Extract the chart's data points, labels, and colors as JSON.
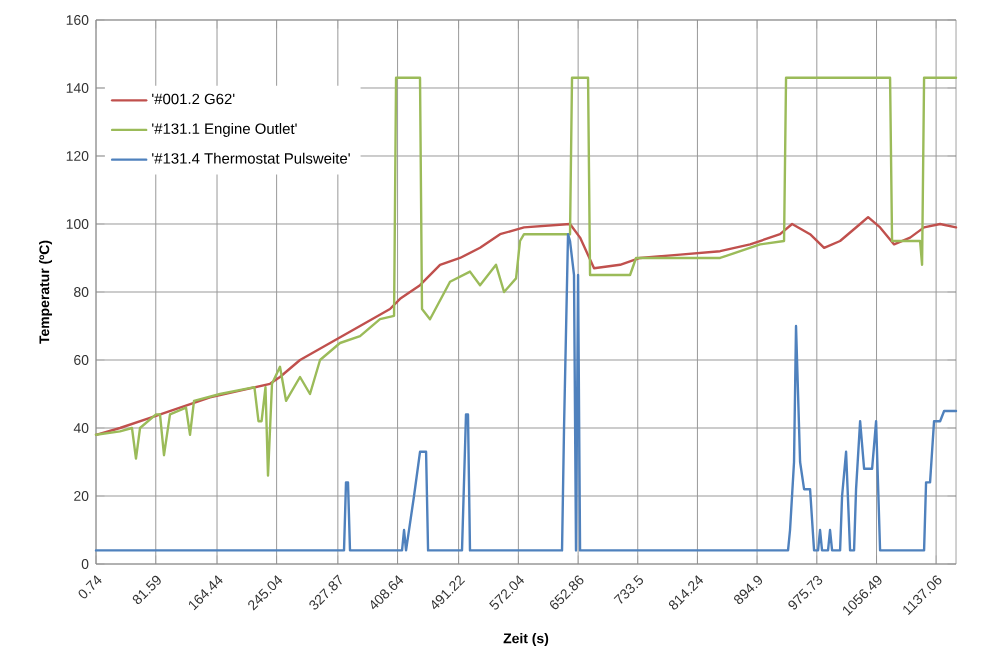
{
  "chart_data": {
    "type": "line",
    "xlabel": "Zeit (s)",
    "ylabel": "Temperatur (ºC)",
    "xlim": [
      0.74,
      1164
    ],
    "ylim": [
      0,
      160
    ],
    "xticks": [
      0.74,
      81.59,
      164.44,
      245.04,
      327.87,
      408.64,
      491.22,
      572.04,
      652.86,
      733.5,
      814.24,
      894.9,
      975.73,
      1056.49,
      1137.06
    ],
    "yticks": [
      0,
      20,
      40,
      60,
      80,
      100,
      120,
      140,
      160
    ],
    "grid": true,
    "legend": "top left",
    "marker": "none",
    "line_style": "solid",
    "series": [
      {
        "name": "'#001.2 G62'",
        "color": "#c0504d",
        "x": [
          0.74,
          33.2,
          73.8,
          114.4,
          155,
          195.5,
          236.1,
          249.6,
          276.7,
          317.3,
          357.9,
          398.4,
          412,
          439,
          466.1,
          493.1,
          520.2,
          547.3,
          579.7,
          641.9,
          655.5,
          674.4,
          709.6,
          736.6,
          790.8,
          844.9,
          885.5,
          926,
          942.3,
          966.6,
          985.6,
          1007.2,
          1034.3,
          1045.1,
          1061.3,
          1080.3,
          1101.9,
          1120.8,
          1142.5,
          1164
        ],
        "values": [
          38,
          40,
          43,
          46,
          49,
          51,
          53,
          55,
          60,
          65,
          70,
          75,
          78,
          82,
          88,
          90,
          93,
          97,
          99,
          100,
          96,
          87,
          88,
          90,
          91,
          92,
          94,
          97,
          100,
          97,
          93,
          95,
          100,
          102,
          99,
          94,
          96,
          99,
          100,
          99
        ]
      },
      {
        "name": "'#131.1 Engine Outlet'",
        "color": "#9bbb59",
        "x": [
          0.74,
          33.2,
          49.4,
          54.8,
          60.3,
          81.9,
          87.3,
          92.7,
          100.8,
          122.5,
          127.9,
          133.3,
          168.5,
          215,
          220.5,
          224.7,
          230,
          233.4,
          238.8,
          249.6,
          257.8,
          276.7,
          290.2,
          303.8,
          330.8,
          357.9,
          384.9,
          403.9,
          406.6,
          439,
          441.7,
          452.5,
          479.6,
          506.6,
          520.2,
          541.8,
          552.7,
          568.9,
          574.3,
          579.7,
          601.4,
          641.9,
          644.6,
          666.3,
          669,
          696,
          723.1,
          731.2,
          790.8,
          844.9,
          899,
          931.4,
          934.1,
          1074.8,
          1077.5,
          1115.4,
          1118.1,
          1120.8,
          1164
        ],
        "values": [
          38,
          39,
          40,
          31,
          40,
          44,
          44,
          32,
          44,
          46,
          38,
          48,
          50,
          52,
          42,
          42,
          52,
          26,
          53,
          58,
          48,
          55,
          50,
          60,
          65,
          67,
          72,
          73,
          143,
          143,
          75,
          72,
          83,
          86,
          82,
          88,
          80,
          84,
          95,
          97,
          97,
          97,
          143,
          143,
          85,
          85,
          85,
          90,
          90,
          90,
          94,
          95,
          143,
          143,
          95,
          95,
          88,
          143,
          143
        ]
      },
      {
        "name": "'#131.4 Thermostat Pulsweite'",
        "color": "#4f81bd",
        "x": [
          0.74,
          336.2,
          338.9,
          341.6,
          344.3,
          414.7,
          417.4,
          420.1,
          430.9,
          439,
          447.2,
          449.9,
          452.5,
          495.8,
          501.2,
          503.9,
          506.6,
          631.1,
          633.8,
          639.2,
          641.9,
          647.3,
          650,
          652.8,
          655.5,
          936.8,
          939.5,
          944.9,
          947.6,
          953.1,
          958.5,
          966.6,
          972,
          977.4,
          980.1,
          982.8,
          990.9,
          993.6,
          996.4,
          1007.2,
          1009.9,
          1015.3,
          1020.7,
          1026.1,
          1028.8,
          1034.3,
          1039.7,
          1045.1,
          1050.5,
          1055.9,
          1061.3,
          1120.8,
          1123.5,
          1128.9,
          1134.3,
          1142.5,
          1147.9,
          1153.3,
          1164
        ],
        "values": [
          4,
          4,
          24,
          24,
          4,
          4,
          10,
          4,
          20,
          33,
          33,
          4,
          4,
          4,
          44,
          44,
          4,
          4,
          40,
          97,
          95,
          85,
          4,
          85,
          4,
          4,
          10,
          30,
          70,
          30,
          22,
          22,
          4,
          4,
          10,
          4,
          4,
          10,
          4,
          4,
          20,
          33,
          4,
          4,
          22,
          42,
          28,
          28,
          28,
          42,
          4,
          4,
          24,
          24,
          42,
          42,
          45,
          45,
          45
        ]
      }
    ]
  }
}
